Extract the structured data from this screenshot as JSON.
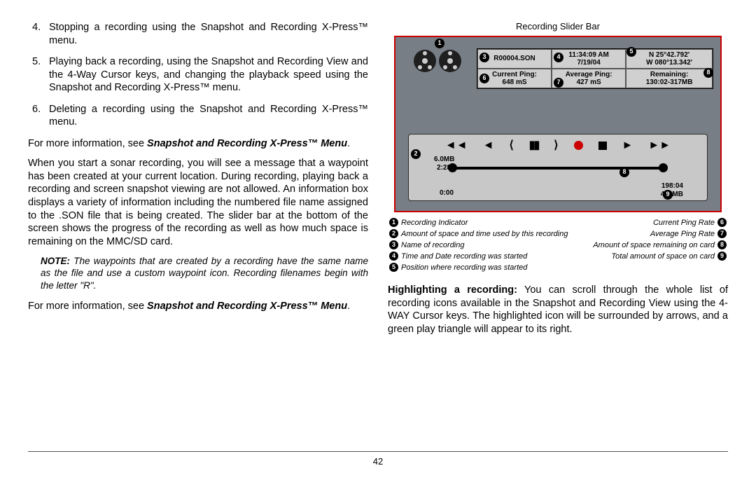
{
  "left": {
    "items": [
      {
        "n": "4.",
        "t": "Stopping a recording using the Snapshot and Recording X-Press™ menu."
      },
      {
        "n": "5.",
        "t": "Playing back a recording, using the Snapshot and Recording View and the 4-Way Cursor keys, and changing the playback speed using the Snapshot and Recording X-Press™ menu."
      },
      {
        "n": "6.",
        "t": "Deleting a recording using the Snapshot and Recording X-Press™ menu."
      }
    ],
    "see1_a": "For more information, see ",
    "see1_b": "Snapshot and Recording X-Press™ Menu",
    "see1_c": ".",
    "para": "When you start a sonar recording, you will see a message that a waypoint has been created at your current location. During recording, playing back a recording and screen snapshot viewing are not allowed. An information box displays a variety of information including the numbered file name assigned to the .SON file that is being created.  The slider bar at the bottom of the screen shows the progress of the recording as well as how much space is remaining on the MMC/SD card.",
    "note_b": "NOTE:",
    "note_t": " The waypoints that are created by a recording have the same name as the file and use a custom waypoint icon. Recording filenames begin with the letter \"R\".",
    "see2_a": "For more information, see ",
    "see2_b": "Snapshot and Recording X-Press™ Menu",
    "see2_c": "."
  },
  "figure": {
    "title": "Recording Slider Bar",
    "cells": {
      "name": "R00004.SON",
      "time": "11:34:09 AM",
      "date": "7/19/04",
      "lat": "N 25°42.792'",
      "lon": "W 080°13.342'",
      "cp_l": "Current Ping:",
      "cp_v": "648 mS",
      "ap_l": "Average Ping:",
      "ap_v": "427 mS",
      "rm_l": "Remaining:",
      "rm_v": "130:02-317MB"
    },
    "slider": {
      "size": "6.0MB",
      "elapsed": "2:28",
      "start": "0:00",
      "rem_t": "198:04",
      "rem_s": "484MB"
    }
  },
  "legend": {
    "left": [
      {
        "n": "1",
        "t": "Recording Indicator"
      },
      {
        "n": "2",
        "t": "Amount of space and time used by this recording"
      },
      {
        "n": "3",
        "t": "Name of recording"
      },
      {
        "n": "4",
        "t": "Time and Date recording was started"
      },
      {
        "n": "5",
        "t": "Position where recording was started"
      }
    ],
    "right": [
      {
        "t": "Current Ping Rate",
        "n": "6"
      },
      {
        "t": "Average Ping Rate",
        "n": "7"
      },
      {
        "t": "Amount of space remaining on card",
        "n": "8"
      },
      {
        "t": "Total amount of space on card",
        "n": "9"
      }
    ]
  },
  "right_para_b": "Highlighting a recording:",
  "right_para_t": " You can scroll through the whole list of recording icons available in the Snapshot and Recording View using the 4-WAY Cursor keys. The highlighted icon will be surrounded by arrows, and a green play triangle will appear to its right.",
  "page_num": "42"
}
